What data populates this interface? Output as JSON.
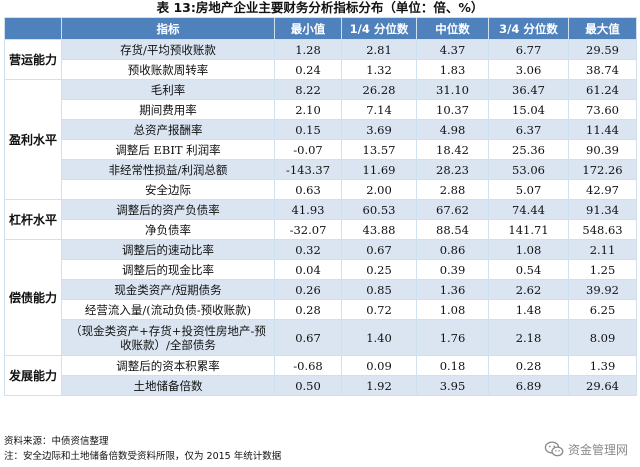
{
  "title": "表 13:房地产企业主要财务分析指标分布（单位：倍、%）",
  "headers": [
    "指标",
    "最小值",
    "1/4 分位数",
    "中位数",
    "3/4 分位数",
    "最大值"
  ],
  "groups": [
    {
      "name": "营运能力",
      "rows": [
        {
          "indicator": "存货/平均预收账款",
          "values": [
            "1.28",
            "2.81",
            "4.37",
            "6.77",
            "29.59"
          ]
        },
        {
          "indicator": "预收账款周转率",
          "values": [
            "0.24",
            "1.32",
            "1.83",
            "3.06",
            "38.74"
          ]
        }
      ]
    },
    {
      "name": "盈利水平",
      "rows": [
        {
          "indicator": "毛利率",
          "values": [
            "8.22",
            "26.28",
            "31.10",
            "36.47",
            "61.24"
          ]
        },
        {
          "indicator": "期间费用率",
          "values": [
            "2.10",
            "7.14",
            "10.37",
            "15.04",
            "73.60"
          ]
        },
        {
          "indicator": "总资产报酬率",
          "values": [
            "0.15",
            "3.69",
            "4.98",
            "6.37",
            "11.44"
          ]
        },
        {
          "indicator": "调整后 EBIT 利润率",
          "values": [
            "-0.07",
            "13.57",
            "18.42",
            "25.36",
            "90.39"
          ]
        },
        {
          "indicator": "非经常性损益/利润总额",
          "values": [
            "-143.37",
            "11.69",
            "28.23",
            "53.06",
            "172.26"
          ]
        },
        {
          "indicator": "安全边际",
          "values": [
            "0.63",
            "2.00",
            "2.88",
            "5.07",
            "42.97"
          ]
        }
      ]
    },
    {
      "name": "杠杆水平",
      "rows": [
        {
          "indicator": "调整后的资产负债率",
          "values": [
            "41.93",
            "60.53",
            "67.62",
            "74.44",
            "91.34"
          ]
        },
        {
          "indicator": "净负债率",
          "values": [
            "-32.07",
            "43.88",
            "88.54",
            "141.71",
            "548.63"
          ]
        }
      ]
    },
    {
      "name": "偿债能力",
      "rows": [
        {
          "indicator": "调整后的速动比率",
          "values": [
            "0.32",
            "0.67",
            "0.86",
            "1.08",
            "2.11"
          ]
        },
        {
          "indicator": "调整后的现金比率",
          "values": [
            "0.04",
            "0.25",
            "0.39",
            "0.54",
            "1.25"
          ]
        },
        {
          "indicator": "现金类资产/短期债务",
          "values": [
            "0.26",
            "0.85",
            "1.36",
            "2.62",
            "39.92"
          ]
        },
        {
          "indicator": "经营流入量/(流动负债-预收账款)",
          "values": [
            "0.28",
            "0.72",
            "1.08",
            "1.48",
            "6.25"
          ]
        },
        {
          "indicator": "（现金类资产+存货+投资性房地产-预收账款）/全部债务",
          "values": [
            "0.67",
            "1.40",
            "1.76",
            "2.18",
            "8.09"
          ]
        }
      ]
    },
    {
      "name": "发展能力",
      "rows": [
        {
          "indicator": "调整后的资本积累率",
          "values": [
            "-0.68",
            "0.09",
            "0.18",
            "0.28",
            "1.39"
          ]
        },
        {
          "indicator": "土地储备倍数",
          "values": [
            "0.50",
            "1.92",
            "3.95",
            "6.89",
            "29.64"
          ]
        }
      ]
    }
  ],
  "footnotes": {
    "source": "资料来源：中债资信整理",
    "note": "注：安全边际和土地储备倍数受资料所限，仅为 2015 年统计数据"
  },
  "watermark": {
    "text": "资金管理网",
    "icon": "wechat-icon"
  }
}
